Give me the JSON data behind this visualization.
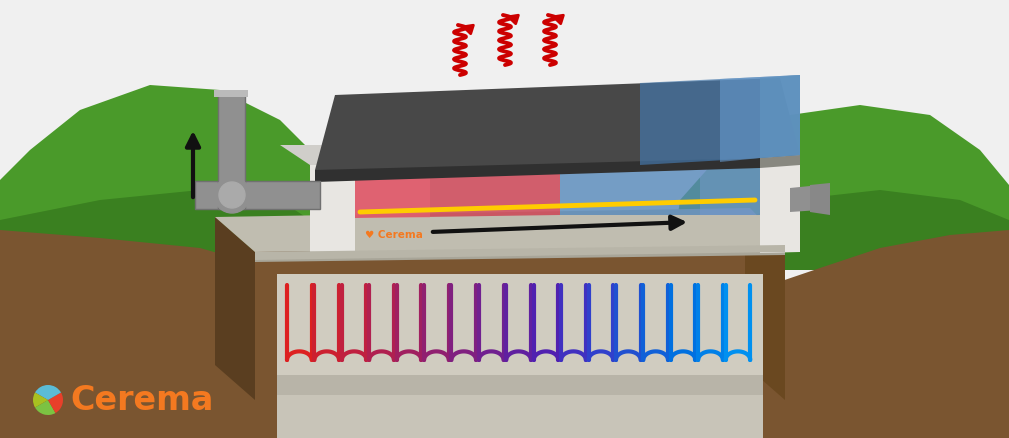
{
  "bg_color": "#ffffff",
  "cerema_text": "Cerema",
  "cerema_color": "#f47920",
  "ground_color": "#7a5530",
  "ground_dark": "#5a3e20",
  "ground_side": "#8a6040",
  "grass_color": "#4a9a2a",
  "grass_dark": "#3a8020",
  "concrete_color": "#c0bdb0",
  "wall_white": "#e8e6e2",
  "wall_gray": "#b0aeaa",
  "dark_panel_color": "#484848",
  "dark_panel_side": "#303030",
  "blue_zone": "#6699cc",
  "blue_zone_dark": "#4477aa",
  "red_zone": "#dd4444",
  "red_zone_dark": "#aa2222",
  "pipe_color": "#909090",
  "pipe_dark": "#606060",
  "arrow_red": "#cc0000",
  "arrow_black": "#111111",
  "yellow_line": "#ffcc00",
  "tunnel_brown": "#7a5530",
  "tunnel_inner_bg": "#c8c4b8",
  "tunnel_floor": "#b8b4a8",
  "coil_colors": [
    "#dd2020",
    "#cc2030",
    "#c02040",
    "#b02050",
    "#a02060",
    "#902070",
    "#802080",
    "#702090",
    "#6020a0",
    "#5020b0",
    "#4030c0",
    "#3040cc",
    "#2050d0",
    "#1060d8",
    "#0070e0",
    "#0080e8",
    "#0090f0"
  ]
}
